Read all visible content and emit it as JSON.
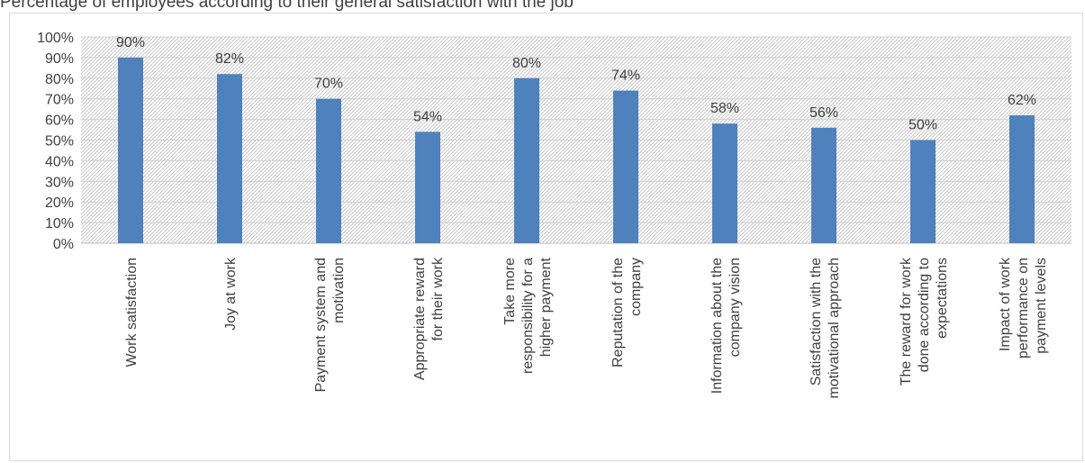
{
  "chart_data": {
    "type": "bar",
    "title": "Percentage of employees according to their general satisfaction with the job",
    "categories": [
      [
        "Work satisfaction"
      ],
      [
        "Joy at work"
      ],
      [
        "Payment system and",
        "motivation"
      ],
      [
        "Appropriate reward",
        "for their work"
      ],
      [
        "Take more",
        "responsibility for a",
        "higher payment"
      ],
      [
        "Reputation of the",
        "company"
      ],
      [
        "Information about the",
        "company vision"
      ],
      [
        "Satisfaction with the",
        "motivational approach"
      ],
      [
        "The reward for work",
        "done according to",
        "expectations"
      ],
      [
        "Impact of work",
        "performance on",
        "payment levels"
      ]
    ],
    "values": [
      90,
      82,
      70,
      54,
      80,
      74,
      58,
      56,
      50,
      62
    ],
    "value_labels": [
      "90%",
      "82%",
      "70%",
      "54%",
      "80%",
      "74%",
      "58%",
      "56%",
      "50%",
      "62%"
    ],
    "y_ticks": [
      "0%",
      "10%",
      "20%",
      "30%",
      "40%",
      "50%",
      "60%",
      "70%",
      "80%",
      "90%",
      "100%"
    ],
    "ylim": [
      0,
      100
    ],
    "grid": true,
    "bar_color": "#4f81bd",
    "plot_pattern": "diagonal-hatch"
  }
}
